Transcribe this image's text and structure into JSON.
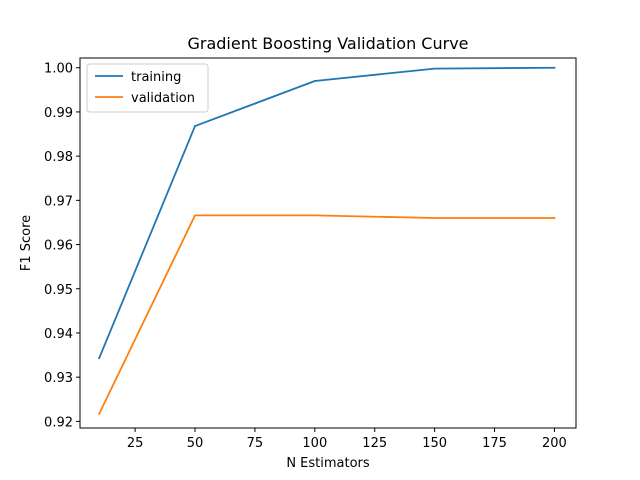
{
  "chart_data": {
    "type": "line",
    "title": "Gradient Boosting Validation Curve",
    "xlabel": "N Estimators",
    "ylabel": "F1 Score",
    "x": [
      10,
      50,
      100,
      150,
      200
    ],
    "xlim": [
      2,
      209
    ],
    "ylim": [
      0.9185,
      1.0022
    ],
    "xticks": [
      25,
      50,
      75,
      100,
      125,
      150,
      175,
      200
    ],
    "yticks": [
      0.92,
      0.93,
      0.94,
      0.95,
      0.96,
      0.97,
      0.98,
      0.99,
      1.0
    ],
    "ytick_labels": [
      "0.92",
      "0.93",
      "0.94",
      "0.95",
      "0.96",
      "0.97",
      "0.98",
      "0.99",
      "1.00"
    ],
    "grid": false,
    "legend_position": "top-left",
    "series": [
      {
        "name": "training",
        "color": "#1f77b4",
        "values": [
          0.9343,
          0.9868,
          0.997,
          0.9998,
          1.0
        ]
      },
      {
        "name": "validation",
        "color": "#ff7f0e",
        "values": [
          0.9217,
          0.9666,
          0.9666,
          0.966,
          0.966
        ]
      }
    ]
  }
}
